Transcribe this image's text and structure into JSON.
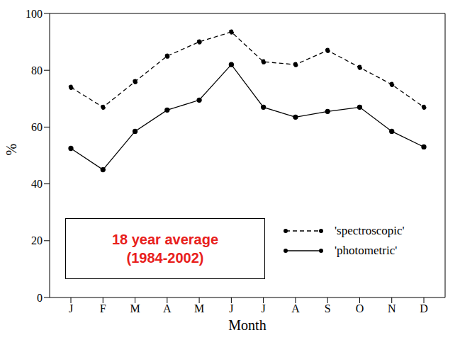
{
  "chart_data": {
    "type": "line",
    "categories": [
      "J",
      "F",
      "M",
      "A",
      "M",
      "J",
      "J",
      "A",
      "S",
      "O",
      "N",
      "D"
    ],
    "x_label": "Month",
    "y_label": "%",
    "ylim": [
      0,
      100
    ],
    "yticks": [
      0,
      20,
      40,
      60,
      80,
      100
    ],
    "grid": false,
    "legend": "lower right",
    "annotation": [
      "18 year average",
      "(1984-2002)"
    ],
    "series": [
      {
        "name": "'spectroscopic'",
        "color": "#000000",
        "line_style": "dashed",
        "marker": "circle",
        "values": [
          74,
          67,
          76,
          85,
          90,
          93.5,
          83,
          82,
          87,
          81,
          75,
          67
        ]
      },
      {
        "name": "'photometric'",
        "color": "#000000",
        "line_style": "solid",
        "marker": "circle",
        "values": [
          52.5,
          45,
          58.5,
          66,
          69.5,
          82,
          67,
          63.5,
          65.5,
          67,
          58.5,
          53
        ]
      }
    ]
  }
}
